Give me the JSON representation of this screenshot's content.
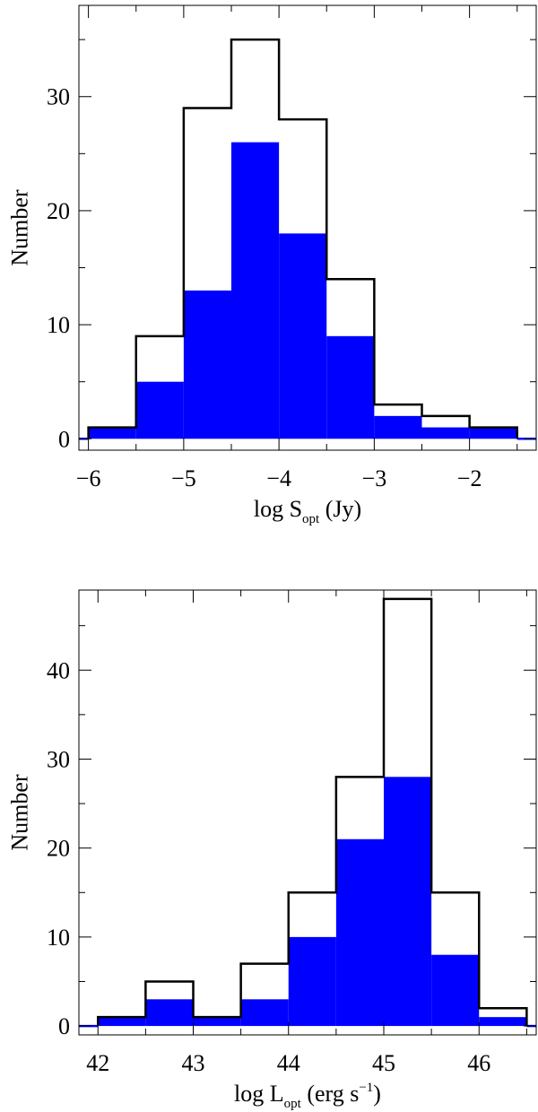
{
  "chart_data": [
    {
      "type": "bar",
      "subtype": "histogram",
      "title": "",
      "xlabel": {
        "main": "log S",
        "sub": "opt",
        "tail": "  (Jy)",
        "sup": ""
      },
      "ylabel": "Number",
      "bin_edges": [
        -6,
        -5.5,
        -5,
        -4.5,
        -4,
        -3.5,
        -3,
        -2.5,
        -2,
        -1.5
      ],
      "xlim": [
        -6.1,
        -1.3
      ],
      "ylim": [
        -1,
        38
      ],
      "xticks": [
        -6,
        -5,
        -4,
        -3,
        -2
      ],
      "xtick_labels": [
        "−6",
        "−5",
        "−4",
        "−3",
        "−2"
      ],
      "yticks": [
        0,
        10,
        20,
        30
      ],
      "ytick_labels": [
        "0",
        "10",
        "20",
        "30"
      ],
      "series": [
        {
          "style": "outline",
          "color": "#000000",
          "values": [
            1,
            9,
            29,
            35,
            28,
            14,
            3,
            2,
            1
          ]
        },
        {
          "style": "filled",
          "color": "#0000ff",
          "values": [
            1,
            5,
            13,
            26,
            18,
            9,
            2,
            1,
            1
          ]
        }
      ],
      "grid": false
    },
    {
      "type": "bar",
      "subtype": "histogram",
      "title": "",
      "xlabel": {
        "main": "log L",
        "sub": "opt",
        "tail": "  (erg s",
        "sup": "−1",
        "close": ")"
      },
      "ylabel": "Number",
      "bin_edges": [
        42,
        42.5,
        43,
        43.5,
        44,
        44.5,
        45,
        45.5,
        46,
        46.5
      ],
      "xlim": [
        41.8,
        46.6
      ],
      "ylim": [
        -1,
        49
      ],
      "xticks": [
        42,
        43,
        44,
        45,
        46
      ],
      "xtick_labels": [
        "42",
        "43",
        "44",
        "45",
        "46"
      ],
      "yticks": [
        0,
        10,
        20,
        30,
        40
      ],
      "ytick_labels": [
        "0",
        "10",
        "20",
        "30",
        "40"
      ],
      "series": [
        {
          "style": "outline",
          "color": "#000000",
          "values": [
            1,
            5,
            1,
            7,
            15,
            28,
            48,
            15,
            2
          ]
        },
        {
          "style": "filled",
          "color": "#0000ff",
          "values": [
            1,
            3,
            1,
            3,
            10,
            21,
            28,
            8,
            1
          ]
        }
      ],
      "grid": false
    }
  ]
}
